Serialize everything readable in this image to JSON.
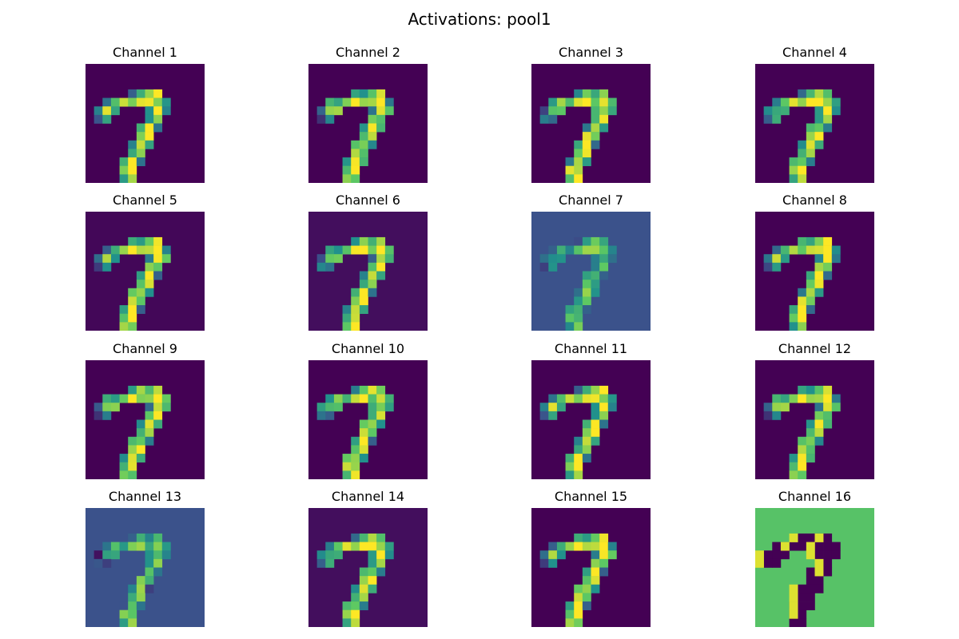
{
  "chart_data": {
    "type": "heatmap",
    "title": "Activations: pool1",
    "grid": false,
    "colormap": "viridis",
    "colormap_stops": [
      "#440154",
      "#3b528b",
      "#21918c",
      "#5ec962",
      "#fde725"
    ],
    "background_levels": [
      0.0,
      0.0,
      0.0,
      0.0,
      0.02,
      0.04,
      0.25,
      0.0,
      0.0,
      0.0,
      0.0,
      0.0,
      0.25,
      0.04,
      0.0,
      0.72
    ],
    "panels": [
      {
        "title": "Channel 1"
      },
      {
        "title": "Channel 2"
      },
      {
        "title": "Channel 3"
      },
      {
        "title": "Channel 4"
      },
      {
        "title": "Channel 5"
      },
      {
        "title": "Channel 6"
      },
      {
        "title": "Channel 7"
      },
      {
        "title": "Channel 8"
      },
      {
        "title": "Channel 9"
      },
      {
        "title": "Channel 10"
      },
      {
        "title": "Channel 11"
      },
      {
        "title": "Channel 12"
      },
      {
        "title": "Channel 13"
      },
      {
        "title": "Channel 14"
      },
      {
        "title": "Channel 15"
      },
      {
        "title": "Channel 16"
      }
    ]
  }
}
